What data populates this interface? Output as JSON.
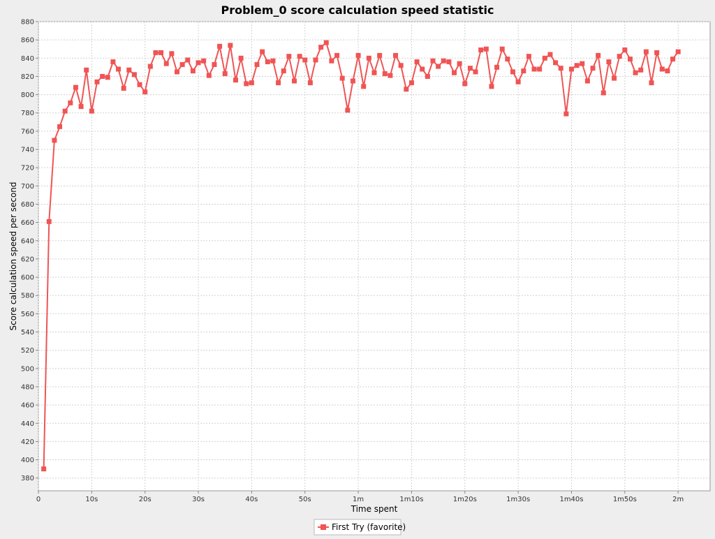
{
  "chart_data": {
    "type": "line",
    "title": "Problem_0 score calculation speed statistic",
    "xlabel": "Time spent",
    "ylabel": "Score calculation speed per second",
    "grid": true,
    "legend_position": "bottom",
    "xlim": [
      0,
      126
    ],
    "ylim": [
      366,
      880
    ],
    "y_ticks": [
      380,
      400,
      420,
      440,
      460,
      480,
      500,
      520,
      540,
      560,
      580,
      600,
      620,
      640,
      660,
      680,
      700,
      720,
      740,
      760,
      780,
      800,
      820,
      840,
      860,
      880
    ],
    "x_ticks": [
      {
        "value": 0,
        "label": "0"
      },
      {
        "value": 10,
        "label": "10s"
      },
      {
        "value": 20,
        "label": "20s"
      },
      {
        "value": 30,
        "label": "30s"
      },
      {
        "value": 40,
        "label": "40s"
      },
      {
        "value": 50,
        "label": "50s"
      },
      {
        "value": 60,
        "label": "1m"
      },
      {
        "value": 70,
        "label": "1m10s"
      },
      {
        "value": 80,
        "label": "1m20s"
      },
      {
        "value": 90,
        "label": "1m30s"
      },
      {
        "value": 100,
        "label": "1m40s"
      },
      {
        "value": 110,
        "label": "1m50s"
      },
      {
        "value": 120,
        "label": "2m"
      }
    ],
    "series": [
      {
        "name": "First Try (favorite)",
        "color": "#f05454",
        "x": [
          1,
          2,
          3,
          4,
          5,
          6,
          7,
          8,
          9,
          10,
          11,
          12,
          13,
          14,
          15,
          16,
          17,
          18,
          19,
          20,
          21,
          22,
          23,
          24,
          25,
          26,
          27,
          28,
          29,
          30,
          31,
          32,
          33,
          34,
          35,
          36,
          37,
          38,
          39,
          40,
          41,
          42,
          43,
          44,
          45,
          46,
          47,
          48,
          49,
          50,
          51,
          52,
          53,
          54,
          55,
          56,
          57,
          58,
          59,
          60,
          61,
          62,
          63,
          64,
          65,
          66,
          67,
          68,
          69,
          70,
          71,
          72,
          73,
          74,
          75,
          76,
          77,
          78,
          79,
          80,
          81,
          82,
          83,
          84,
          85,
          86,
          87,
          88,
          89,
          90,
          91,
          92,
          93,
          94,
          95,
          96,
          97,
          98,
          99,
          100,
          101,
          102,
          103,
          104,
          105,
          106,
          107,
          108,
          109,
          110,
          111,
          112,
          113,
          114,
          115,
          116,
          117,
          118,
          119,
          120
        ],
        "values": [
          390,
          661,
          750,
          765,
          782,
          791,
          808,
          787,
          827,
          782,
          814,
          820,
          819,
          836,
          828,
          807,
          827,
          822,
          811,
          803,
          831,
          846,
          846,
          834,
          845,
          825,
          833,
          838,
          826,
          835,
          837,
          821,
          833,
          853,
          823,
          854,
          816,
          840,
          812,
          813,
          833,
          847,
          836,
          837,
          813,
          826,
          842,
          815,
          842,
          838,
          813,
          838,
          852,
          857,
          837,
          843,
          818,
          783,
          815,
          843,
          809,
          840,
          824,
          843,
          823,
          821,
          843,
          832,
          806,
          813,
          836,
          828,
          820,
          837,
          831,
          837,
          836,
          824,
          834,
          812,
          829,
          825,
          849,
          850,
          809,
          830,
          850,
          839,
          825,
          814,
          826,
          842,
          828,
          828,
          840,
          844,
          835,
          829,
          779,
          828,
          832,
          834,
          815,
          829,
          843,
          802,
          836,
          818,
          842,
          849,
          839,
          824,
          827,
          847,
          813,
          846,
          828,
          826,
          839,
          847
        ]
      }
    ]
  }
}
